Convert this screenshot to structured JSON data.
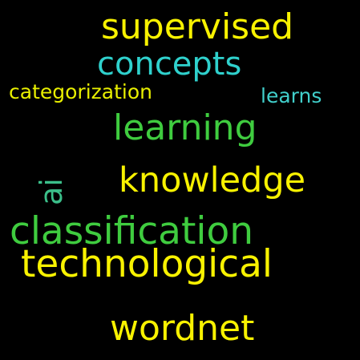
{
  "word_cloud": {
    "words": [
      {
        "text": "supervised",
        "color": "#f8f200"
      },
      {
        "text": "concepts",
        "color": "#2fd1cd"
      },
      {
        "text": "categorization",
        "color": "#e8ef00"
      },
      {
        "text": "learns",
        "color": "#41cfcb"
      },
      {
        "text": "learning",
        "color": "#3fcc3f"
      },
      {
        "text": "knowledge",
        "color": "#f8f200"
      },
      {
        "text": "ai",
        "color": "#3bbf8a",
        "orientation": "vertical"
      },
      {
        "text": "classification",
        "color": "#3fcc3f"
      },
      {
        "text": "technological",
        "color": "#f8f200"
      },
      {
        "text": "wordnet",
        "color": "#f8f200"
      }
    ],
    "background": "#000000"
  }
}
